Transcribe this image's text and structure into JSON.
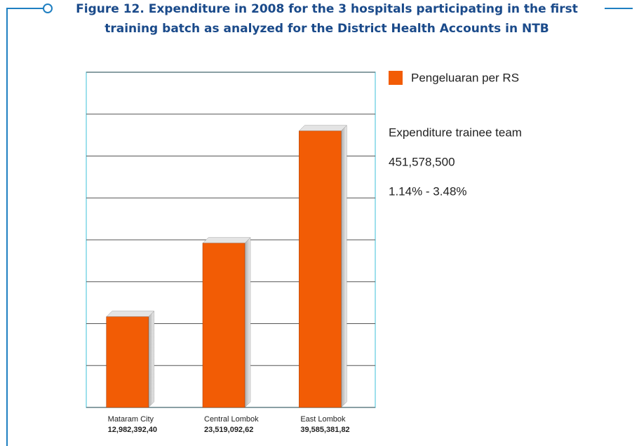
{
  "chart_data": {
    "type": "bar",
    "title": [
      "Figure 12. Expenditure in 2008 for the 3 hospitals participating in the first",
      "training batch as analyzed for the District Health Accounts in NTB"
    ],
    "categories": [
      "Mataram City",
      "Central Lombok",
      "East Lombok"
    ],
    "series": [
      {
        "name": "Pengeluaran per RS",
        "color": "#f25c05",
        "values": [
          1298239240,
          2351909262,
          3958538182
        ],
        "value_labels": [
          "12,982,392,40",
          "23,519,092,62",
          "39,585,381,82"
        ]
      }
    ],
    "annotations": [
      "Expenditure trainee team",
      "451,578,500",
      "1.14% - 3.48%"
    ],
    "ylim": [
      0,
      4800000000
    ],
    "yticks": [
      0,
      600000000,
      1200000000,
      1800000000,
      2400000000,
      3000000000,
      3600000000,
      4200000000,
      4800000000
    ],
    "grid": true
  }
}
